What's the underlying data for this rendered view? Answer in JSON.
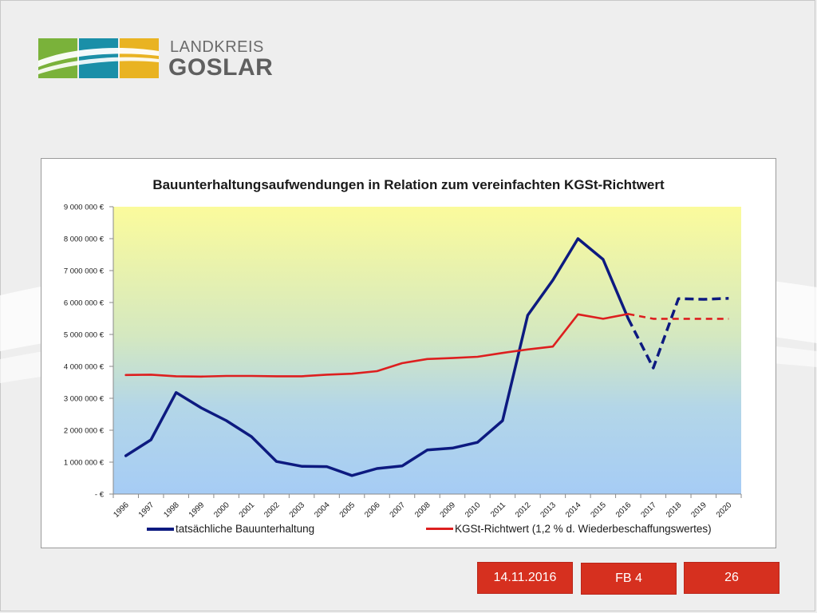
{
  "logo": {
    "line1": "LANDKREIS",
    "line2": "GOSLAR",
    "colors": [
      "#7ab23a",
      "#1a8fa8",
      "#e9b322"
    ]
  },
  "chart_data": {
    "type": "line",
    "title": "Bauunterhaltungsaufwendungen in Relation zum vereinfachten KGSt-Richtwert",
    "categories": [
      "1996",
      "1997",
      "1998",
      "1999",
      "2000",
      "2001",
      "2002",
      "2003",
      "2004",
      "2005",
      "2006",
      "2007",
      "2008",
      "2009",
      "2010",
      "2011",
      "2012",
      "2013",
      "2014",
      "2015",
      "2016",
      "2017",
      "2018",
      "2019",
      "2020"
    ],
    "y_ticks": [
      "- €",
      "1 000 000 €",
      "2 000 000 €",
      "3 000 000 €",
      "4 000 000 €",
      "5 000 000 €",
      "6 000 000 €",
      "7 000 000 €",
      "8 000 000 €",
      "9 000 000 €"
    ],
    "ylim": [
      0,
      9000000
    ],
    "series": [
      {
        "name": "tatsächliche Bauunterhaltung",
        "color": "#0d1a80",
        "solid_until": "2016",
        "values": [
          1200000,
          1700000,
          3180000,
          2700000,
          2300000,
          1800000,
          1020000,
          870000,
          860000,
          580000,
          800000,
          880000,
          1380000,
          1440000,
          1620000,
          2300000,
          5600000,
          6700000,
          8000000,
          7350000,
          5500000,
          3950000,
          6120000,
          6100000,
          6130000
        ]
      },
      {
        "name": "KGSt-Richtwert (1,2 % d. Wiederbeschaffungswertes)",
        "color": "#dd1f1f",
        "solid_until": "2016",
        "values": [
          3730000,
          3740000,
          3690000,
          3680000,
          3700000,
          3700000,
          3690000,
          3690000,
          3740000,
          3770000,
          3850000,
          4100000,
          4230000,
          4260000,
          4300000,
          4420000,
          4530000,
          4620000,
          5630000,
          5490000,
          5640000,
          5490000,
          5490000,
          5490000,
          5490000
        ]
      }
    ],
    "legend_position": "bottom"
  },
  "footer": {
    "date": "14.11.2016",
    "section": "FB 4",
    "page": "26"
  }
}
